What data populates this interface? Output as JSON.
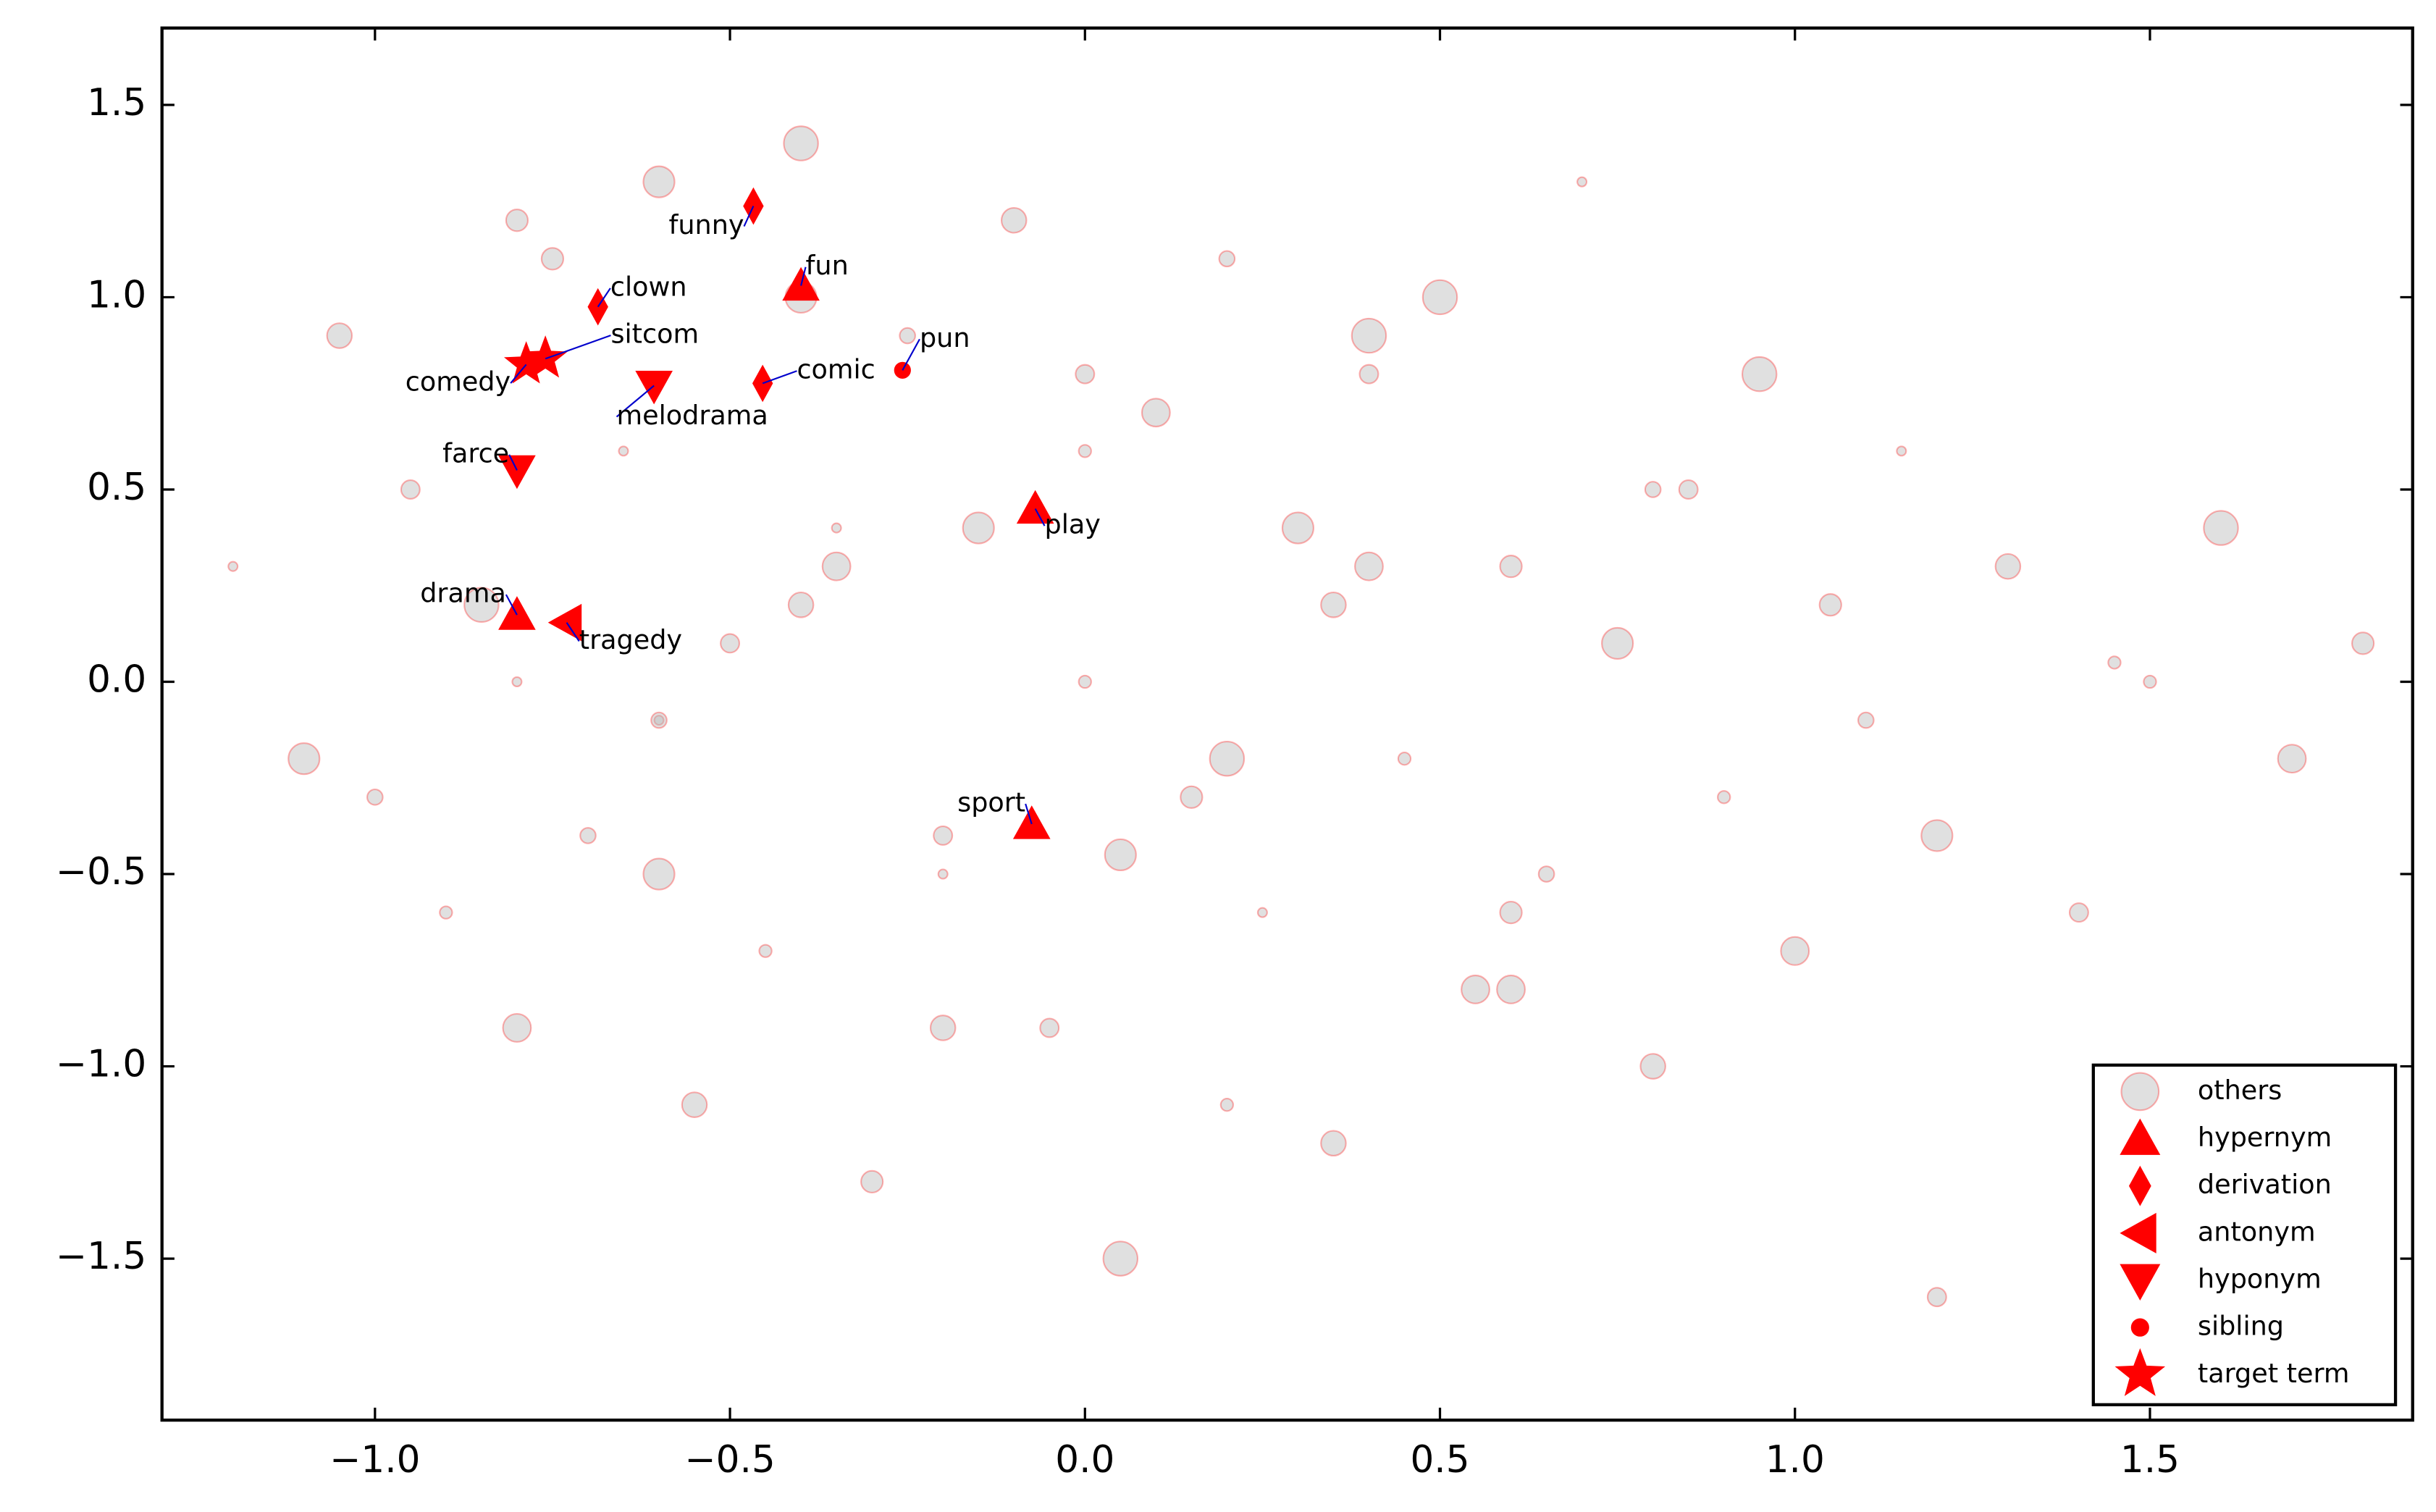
{
  "chart_data": {
    "type": "scatter",
    "xlim": [
      -1.3,
      1.87
    ],
    "ylim": [
      -1.92,
      1.7
    ],
    "xticks": [
      {
        "value": -1.0,
        "label": "−1.0"
      },
      {
        "value": -0.5,
        "label": "−0.5"
      },
      {
        "value": 0.0,
        "label": "0.0"
      },
      {
        "value": 0.5,
        "label": "0.5"
      },
      {
        "value": 1.0,
        "label": "1.0"
      },
      {
        "value": 1.5,
        "label": "1.5"
      }
    ],
    "yticks": [
      {
        "value": -1.5,
        "label": "−1.5"
      },
      {
        "value": -1.0,
        "label": "−1.0"
      },
      {
        "value": -0.5,
        "label": "−0.5"
      },
      {
        "value": 0.0,
        "label": "0.0"
      },
      {
        "value": 0.5,
        "label": "0.5"
      },
      {
        "value": 1.0,
        "label": "1.0"
      },
      {
        "value": 1.5,
        "label": "1.5"
      }
    ],
    "legend": "lower right",
    "series": [
      {
        "name": "others",
        "marker": "o",
        "color": "#bbbbbb",
        "x": [
          -1.2,
          -1.1,
          -1.05,
          -0.95,
          -0.9,
          -0.85,
          -0.8,
          -0.75,
          -0.7,
          -0.65,
          -0.6,
          -0.55,
          -0.5,
          -0.45,
          -0.4,
          -0.35,
          -0.3,
          -0.25,
          -0.2,
          -0.15,
          -0.1,
          -0.05,
          0.0,
          0.05,
          0.1,
          0.15,
          0.2,
          0.25,
          0.3,
          0.35,
          0.4,
          0.45,
          0.5,
          0.55,
          0.6,
          0.65,
          0.7,
          0.75,
          0.8,
          0.85,
          0.9,
          0.95,
          1.0,
          1.05,
          1.1,
          1.15,
          1.2,
          1.3,
          1.4,
          1.5,
          1.6,
          1.7,
          1.8,
          -1.0,
          -0.8,
          -0.6,
          -0.4,
          -0.2,
          0.0,
          0.2,
          0.4,
          0.6,
          0.8,
          -0.6,
          -0.4,
          -0.2,
          0.0,
          0.2,
          0.4,
          0.6,
          -0.8,
          -0.6,
          -0.35,
          0.05,
          0.35,
          1.2,
          1.45
        ],
        "y": [
          0.3,
          -0.2,
          0.9,
          0.5,
          -0.6,
          0.2,
          -0.9,
          1.1,
          -0.4,
          0.6,
          1.3,
          -1.1,
          0.1,
          -0.7,
          1.4,
          0.3,
          -1.3,
          0.9,
          -0.5,
          0.4,
          1.2,
          -0.9,
          0.0,
          -1.5,
          0.7,
          -0.3,
          1.1,
          -0.6,
          0.4,
          -1.2,
          0.8,
          -0.2,
          1.0,
          -0.8,
          0.3,
          -0.5,
          1.3,
          0.1,
          -1.0,
          0.5,
          -0.3,
          0.8,
          -0.7,
          0.2,
          -0.1,
          0.6,
          -0.4,
          0.3,
          -0.6,
          0.0,
          0.4,
          -0.2,
          0.1,
          -0.3,
          0.0,
          -0.5,
          0.2,
          -0.4,
          0.6,
          -0.2,
          0.3,
          -0.6,
          0.5,
          -0.1,
          1.0,
          -0.9,
          0.8,
          -1.1,
          0.9,
          -0.8,
          1.2,
          -0.1,
          0.4,
          -0.45,
          0.2,
          -1.6,
          0.05
        ]
      },
      {
        "name": "hypernym",
        "marker": "^",
        "color": "#ff0000",
        "x": [
          -0.4,
          -0.07,
          -0.8,
          -0.075
        ],
        "y": [
          1.03,
          0.45,
          0.174,
          -0.37
        ],
        "labels": [
          "fun",
          "play",
          "drama",
          "sport"
        ]
      },
      {
        "name": "derivation",
        "marker": "d",
        "color": "#ff0000",
        "x": [
          -0.467,
          -0.686,
          -0.454
        ],
        "y": [
          1.237,
          0.975,
          0.776
        ],
        "labels": [
          "funny",
          "clown",
          "comic"
        ]
      },
      {
        "name": "antonym",
        "marker": "<",
        "color": "#ff0000",
        "x": [
          -0.73
        ],
        "y": [
          0.154
        ],
        "labels": [
          "tragedy"
        ]
      },
      {
        "name": "hyponym",
        "marker": "v",
        "color": "#ff0000",
        "x": [
          -0.607,
          -0.8
        ],
        "y": [
          0.77,
          0.55
        ],
        "labels": [
          "melodrama",
          "farce"
        ]
      },
      {
        "name": "sibling",
        "marker": ".",
        "color": "#ff0000",
        "x": [
          -0.257
        ],
        "y": [
          0.81
        ],
        "labels": [
          "pun"
        ]
      },
      {
        "name": "target term",
        "marker": "*",
        "color": "#ff0000",
        "x": [
          -0.787,
          -0.76
        ],
        "y": [
          0.825,
          0.84
        ],
        "labels": [
          "comedy",
          "sitcom"
        ]
      }
    ]
  }
}
